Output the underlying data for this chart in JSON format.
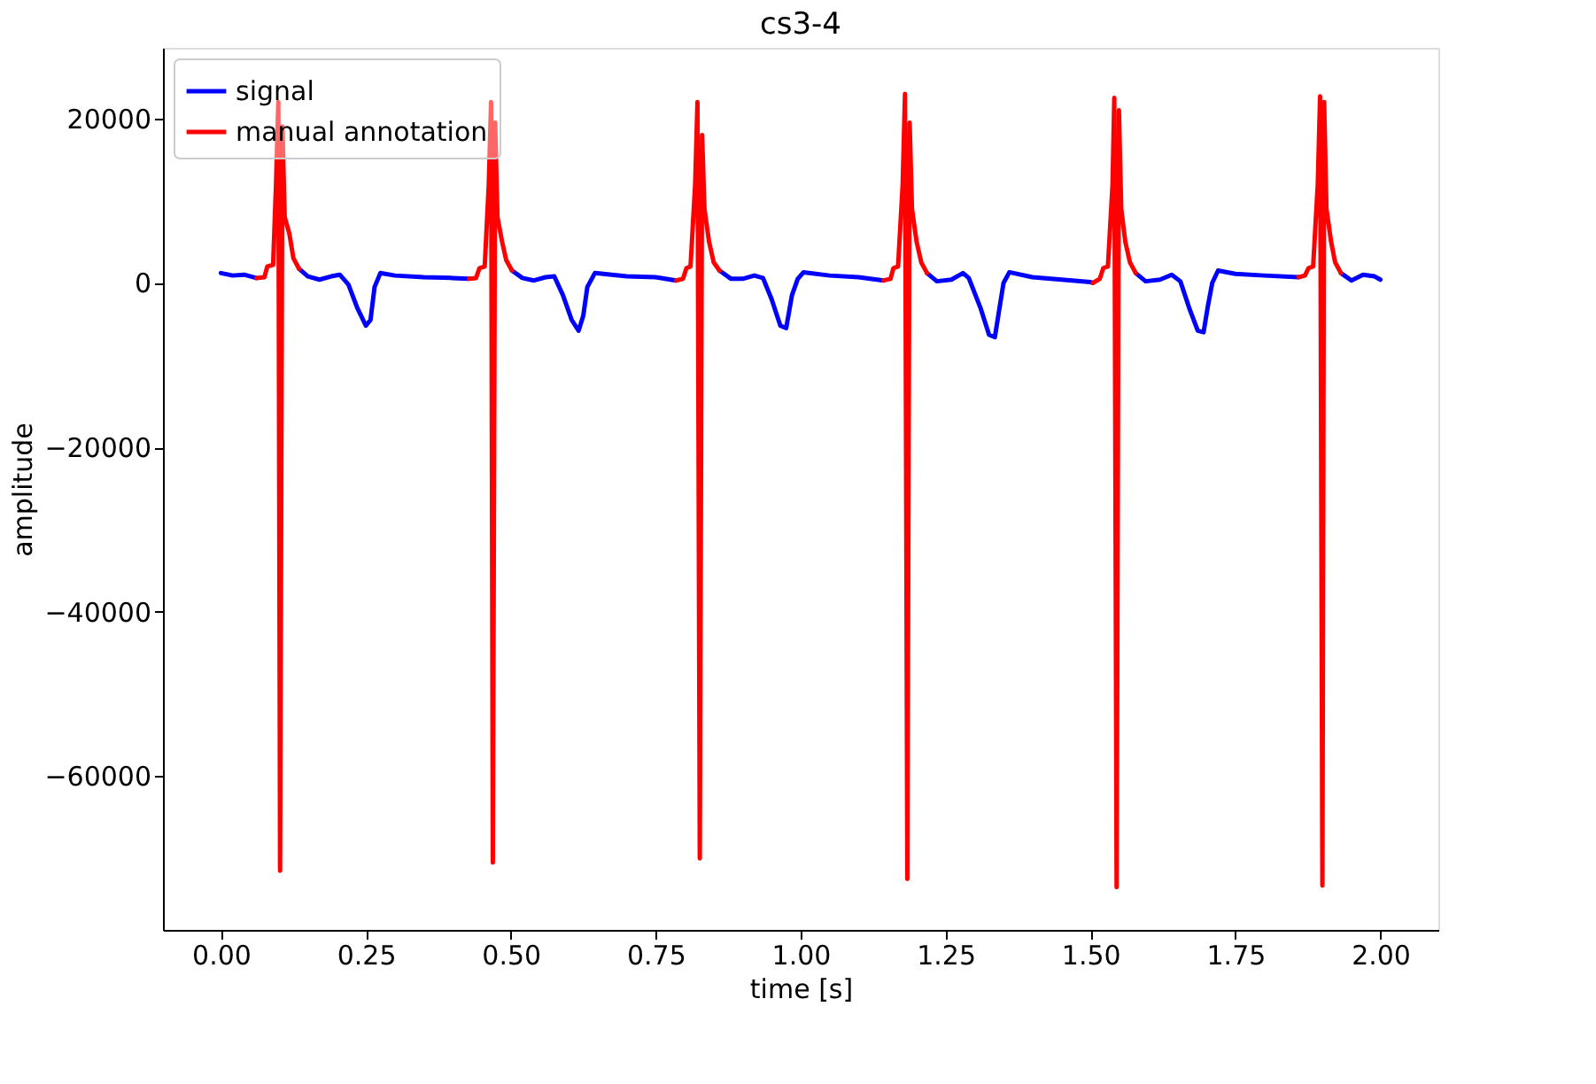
{
  "chart_data": {
    "type": "line",
    "title": "cs3-4",
    "xlabel": "time [s]",
    "ylabel": "amplitude",
    "xlim": [
      -0.1,
      2.1
    ],
    "ylim": [
      -78700,
      28600
    ],
    "xticks": [
      {
        "value": 0,
        "label": "0.00"
      },
      {
        "value": 0.25,
        "label": "0.25"
      },
      {
        "value": 0.5,
        "label": "0.50"
      },
      {
        "value": 0.75,
        "label": "0.75"
      },
      {
        "value": 1,
        "label": "1.00"
      },
      {
        "value": 1.25,
        "label": "1.25"
      },
      {
        "value": 1.5,
        "label": "1.50"
      },
      {
        "value": 1.75,
        "label": "1.75"
      },
      {
        "value": 2,
        "label": "2.00"
      }
    ],
    "yticks": [
      {
        "value": -60000,
        "label": "−60000"
      },
      {
        "value": -40000,
        "label": "−40000"
      },
      {
        "value": -20000,
        "label": "−20000"
      },
      0,
      20000
    ],
    "grid": false,
    "legend": "top left",
    "line_style": "solid",
    "marker": "none",
    "series": [
      {
        "name": "signal",
        "color": "#0000ff",
        "x": [
          0.0,
          0.02,
          0.04,
          0.061,
          0.1,
          0.135,
          0.15,
          0.17,
          0.19,
          0.205,
          0.22,
          0.235,
          0.25,
          0.258,
          0.265,
          0.275,
          0.3,
          0.35,
          0.4,
          0.428,
          0.46,
          0.502,
          0.52,
          0.54,
          0.56,
          0.575,
          0.59,
          0.605,
          0.617,
          0.625,
          0.632,
          0.645,
          0.7,
          0.75,
          0.785,
          0.82,
          0.86,
          0.88,
          0.9,
          0.92,
          0.935,
          0.95,
          0.965,
          0.975,
          0.985,
          0.995,
          1.005,
          1.05,
          1.1,
          1.143,
          1.18,
          1.218,
          1.235,
          1.26,
          1.28,
          1.29,
          1.31,
          1.325,
          1.335,
          1.342,
          1.35,
          1.36,
          1.4,
          1.45,
          1.5,
          1.504,
          1.54,
          1.578,
          1.595,
          1.62,
          1.64,
          1.655,
          1.67,
          1.685,
          1.695,
          1.702,
          1.71,
          1.72,
          1.75,
          1.8,
          1.859,
          1.9,
          1.932,
          1.95,
          1.97,
          1.99,
          2.0
        ],
        "values": [
          1200,
          900,
          1000,
          600,
          null,
          1700,
          800,
          400,
          800,
          1000,
          -200,
          -3000,
          -5200,
          -4500,
          -500,
          1200,
          900,
          700,
          600,
          500,
          null,
          1500,
          600,
          300,
          700,
          800,
          -1500,
          -4500,
          -5800,
          -4000,
          -500,
          1200,
          800,
          700,
          300,
          null,
          1500,
          500,
          500,
          900,
          600,
          -2000,
          -5200,
          -5500,
          -1500,
          500,
          1300,
          900,
          700,
          300,
          null,
          1200,
          200,
          400,
          1200,
          600,
          -3000,
          -6300,
          -6600,
          -3500,
          0,
          1300,
          700,
          400,
          100,
          0,
          null,
          1200,
          200,
          400,
          1000,
          200,
          -3000,
          -5800,
          -6000,
          -3000,
          0,
          1500,
          1100,
          900,
          700,
          null,
          1200,
          300,
          1000,
          800,
          400
        ]
      },
      {
        "name": "manual annotation",
        "color": "#ff0000",
        "x": [
          0.061,
          0.075,
          0.08,
          0.09,
          0.095,
          0.099,
          0.102,
          0.106,
          0.11,
          0.118,
          0.125,
          0.135,
          0.3,
          0.428,
          0.44,
          0.446,
          0.455,
          0.462,
          0.466,
          0.469,
          0.473,
          0.477,
          0.485,
          0.492,
          0.502,
          0.65,
          0.785,
          0.797,
          0.803,
          0.81,
          0.818,
          0.822,
          0.826,
          0.83,
          0.834,
          0.842,
          0.85,
          0.86,
          1.0,
          1.143,
          1.155,
          1.16,
          1.168,
          1.176,
          1.18,
          1.184,
          1.188,
          1.192,
          1.2,
          1.208,
          1.218,
          1.4,
          1.504,
          1.516,
          1.522,
          1.53,
          1.538,
          1.541,
          1.545,
          1.549,
          1.553,
          1.56,
          1.568,
          1.578,
          1.7,
          1.859,
          1.87,
          1.876,
          1.884,
          1.892,
          1.896,
          1.9,
          1.903,
          1.907,
          1.915,
          1.922,
          1.932
        ],
        "values": [
          600,
          700,
          2000,
          2200,
          12000,
          22000,
          -71500,
          19000,
          8000,
          6000,
          3000,
          1700,
          null,
          500,
          600,
          1800,
          2000,
          12000,
          22000,
          -70500,
          19500,
          8000,
          5000,
          2800,
          1500,
          null,
          300,
          500,
          1800,
          2000,
          12000,
          22000,
          -70000,
          18000,
          9000,
          5000,
          2500,
          1500,
          null,
          300,
          500,
          1800,
          2000,
          12000,
          23000,
          -72500,
          19500,
          9000,
          5000,
          2500,
          1200,
          null,
          0,
          500,
          1800,
          2000,
          12000,
          22500,
          -73500,
          21000,
          9000,
          5000,
          2500,
          1200,
          null,
          700,
          900,
          1800,
          2000,
          12000,
          22700,
          -73300,
          22000,
          9000,
          5000,
          2500,
          1200
        ]
      }
    ]
  }
}
